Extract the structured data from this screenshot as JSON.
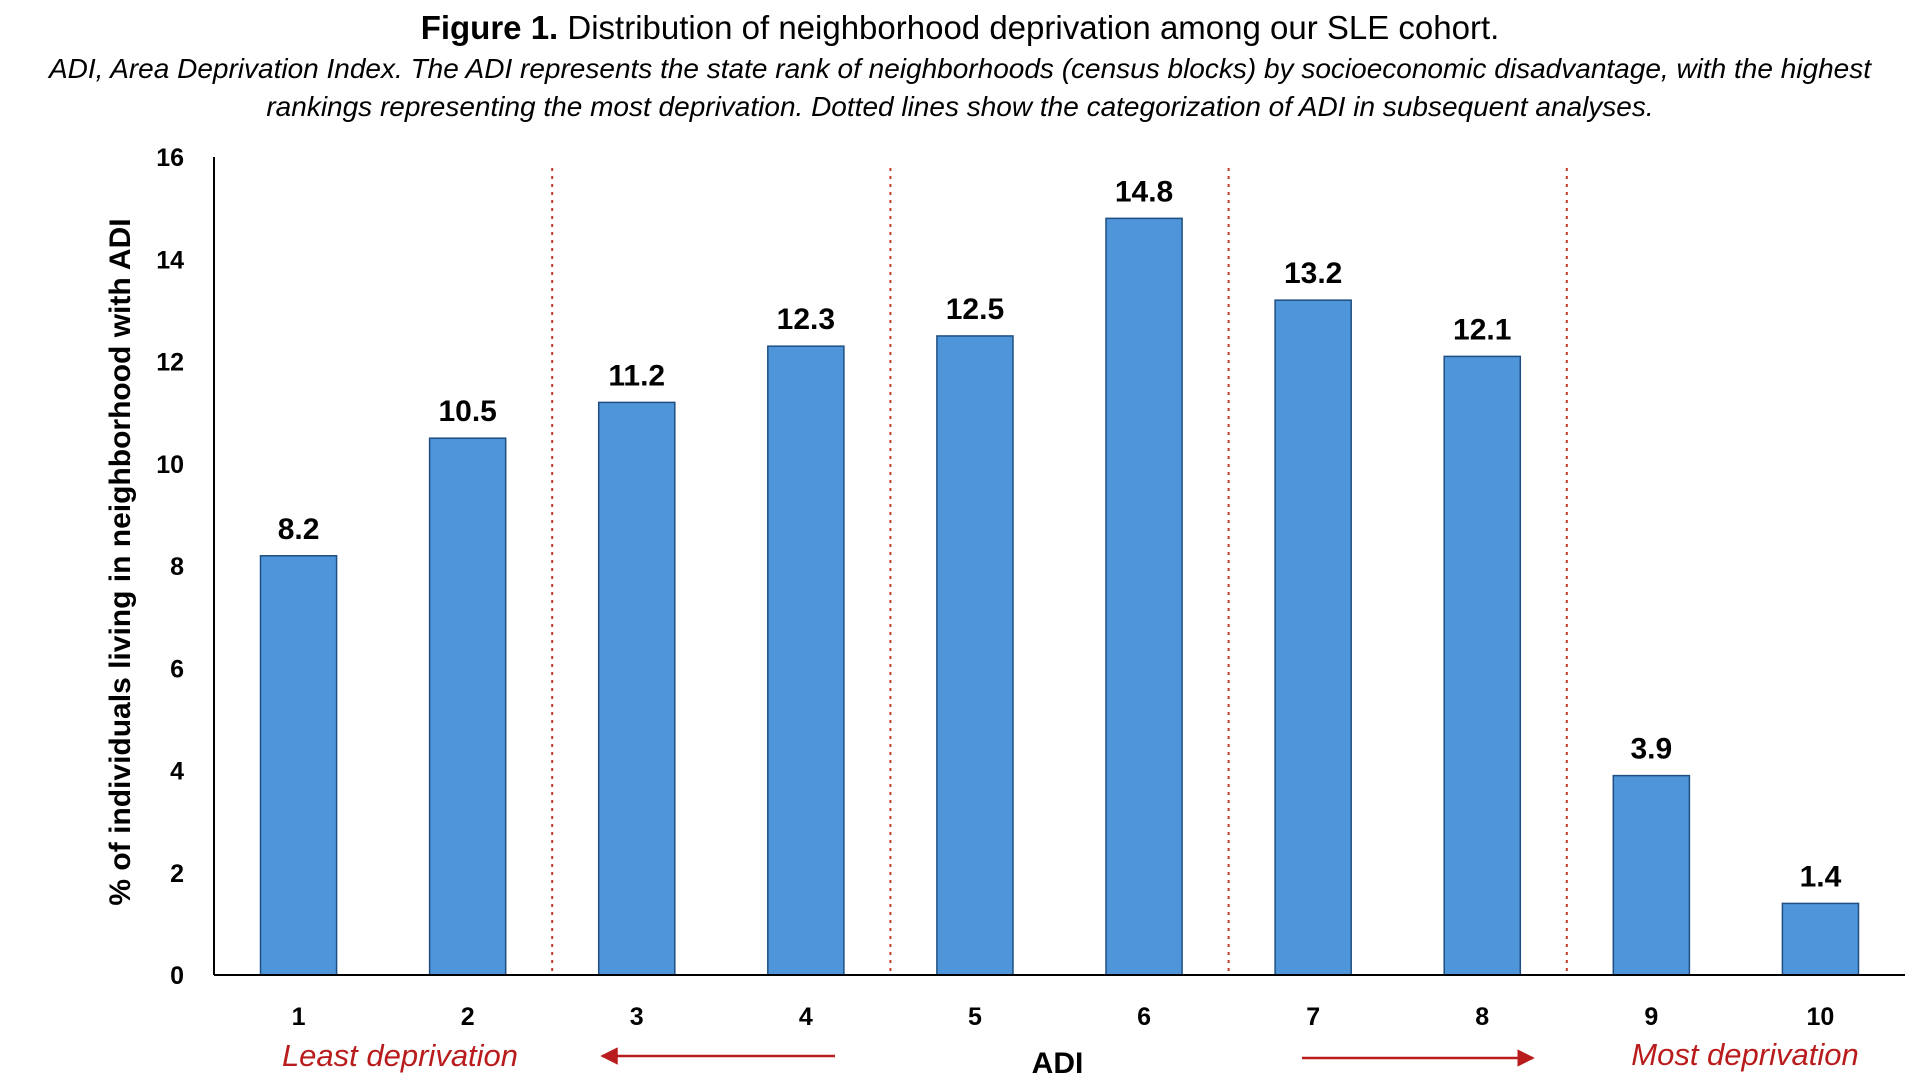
{
  "header": {
    "figure_label": "Figure 1.",
    "title_text": "Distribution of neighborhood deprivation among our SLE cohort.",
    "subtitle": "ADI, Area Deprivation Index. The ADI represents the state rank of neighborhoods (census blocks) by socioeconomic disadvantage, with the highest rankings representing the most deprivation. Dotted lines show the categorization of ADI in subsequent analyses."
  },
  "chart_data": {
    "type": "bar",
    "title": "Figure 1. Distribution of neighborhood deprivation among our SLE cohort.",
    "xlabel": "ADI",
    "ylabel": "% of individuals living in neighborhood with ADI",
    "categories": [
      "1",
      "2",
      "3",
      "4",
      "5",
      "6",
      "7",
      "8",
      "9",
      "10"
    ],
    "values": [
      8.2,
      10.5,
      11.2,
      12.3,
      12.5,
      14.8,
      13.2,
      12.1,
      3.9,
      1.4
    ],
    "data_labels": [
      "8.2",
      "10.5",
      "11.2",
      "12.3",
      "12.5",
      "14.8",
      "13.2",
      "12.1",
      "3.9",
      "1.4"
    ],
    "ylim": [
      0,
      16
    ],
    "yticks": [
      0,
      2,
      4,
      6,
      8,
      10,
      12,
      14,
      16
    ],
    "grid": false,
    "legend": "none",
    "category_dividers_after": [
      2,
      4,
      6,
      8
    ],
    "annotations": {
      "left_text": "Least deprivation",
      "right_text": "Most deprivation",
      "left_arrow_direction": "left",
      "right_arrow_direction": "right"
    },
    "colors": {
      "bar_fill": "#4f95d9",
      "bar_stroke": "#1f4f82",
      "divider": "#c0392b",
      "annotation": "#b91c1c",
      "axis": "#000000"
    }
  }
}
